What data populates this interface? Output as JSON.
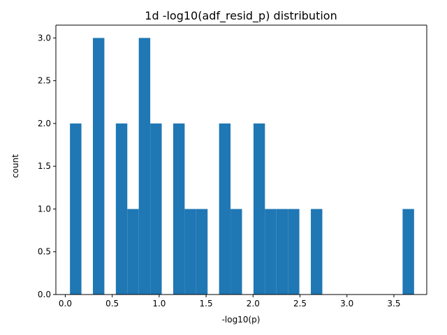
{
  "chart_data": {
    "type": "bar",
    "title": "1d  -log10(adf_resid_p) distribution",
    "xlabel": "-log10(p)",
    "ylabel": "count",
    "xlim": [
      -0.1,
      3.85
    ],
    "ylim": [
      0,
      3.15
    ],
    "x_ticks": [
      0.0,
      0.5,
      1.0,
      1.5,
      2.0,
      2.5,
      3.0,
      3.5
    ],
    "x_tick_labels": [
      "0.0",
      "0.5",
      "1.0",
      "1.5",
      "2.0",
      "2.5",
      "3.0",
      "3.5"
    ],
    "y_ticks": [
      0.0,
      0.5,
      1.0,
      1.5,
      2.0,
      2.5,
      3.0
    ],
    "y_tick_labels": [
      "0.0",
      "0.5",
      "1.0",
      "1.5",
      "2.0",
      "2.5",
      "3.0"
    ],
    "grid": false,
    "bar_color": "#1f77b4",
    "bin_edges": [
      0.05,
      0.1722,
      0.2943,
      0.4165,
      0.5387,
      0.6608,
      0.783,
      0.9052,
      1.0273,
      1.1495,
      1.2717,
      1.3938,
      1.516,
      1.6382,
      1.7603,
      1.8825,
      2.0047,
      2.1268,
      2.249,
      2.3712,
      2.4933,
      2.6155,
      2.7377,
      2.8598,
      2.982,
      3.1042,
      3.2263,
      3.3485,
      3.4707,
      3.5928,
      3.715
    ],
    "counts": [
      2,
      0,
      3,
      0,
      2,
      1,
      3,
      2,
      0,
      2,
      1,
      1,
      0,
      2,
      1,
      0,
      2,
      1,
      1,
      1,
      0,
      1,
      0,
      0,
      0,
      0,
      0,
      0,
      0,
      1
    ]
  }
}
